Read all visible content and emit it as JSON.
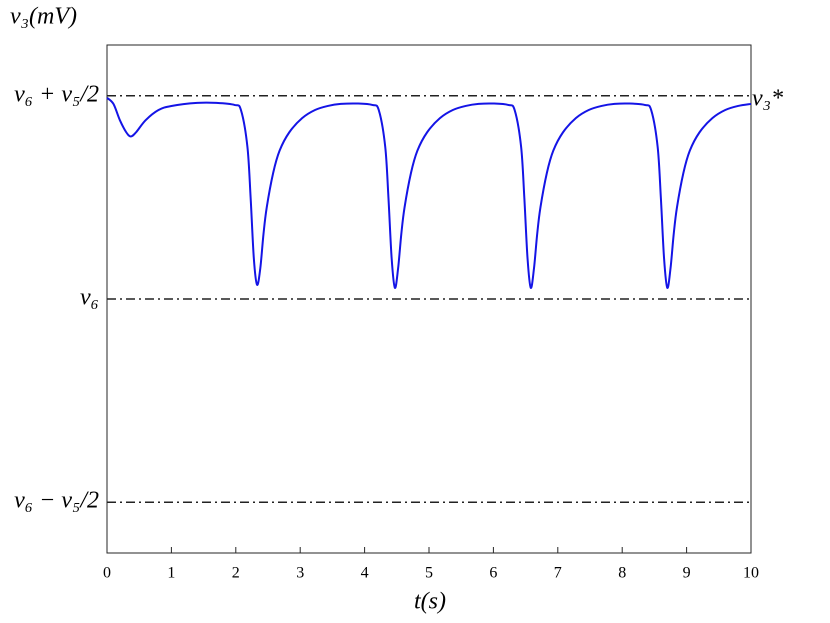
{
  "chart_data": {
    "type": "line",
    "y_label": "v₃(mV)",
    "x_label": "t(s)",
    "annotation": "v₃*",
    "xlim": [
      0,
      10
    ],
    "xticks": [
      0,
      1,
      2,
      3,
      4,
      5,
      6,
      7,
      8,
      9,
      10
    ],
    "ylim": [
      -1.25,
      1.25
    ],
    "yticks": [
      {
        "value": -1,
        "label": "v₆ − v₅/2"
      },
      {
        "value": 0,
        "label": "v₆"
      },
      {
        "value": 1,
        "label": "v₆ + v₅/2"
      }
    ],
    "grid": true,
    "grid_style": "dash-dot",
    "x": [
      0,
      0.1,
      0.2,
      0.3,
      0.37,
      0.45,
      0.6,
      0.8,
      1.0,
      1.4,
      1.7,
      1.98,
      2.08,
      2.18,
      2.23,
      2.28,
      2.33,
      2.38,
      2.43,
      2.48,
      2.58,
      2.68,
      2.83,
      3.03,
      3.23,
      3.43,
      3.63,
      3.9,
      4.12,
      4.22,
      4.32,
      4.37,
      4.42,
      4.47,
      4.52,
      4.57,
      4.62,
      4.72,
      4.82,
      4.97,
      5.17,
      5.37,
      5.57,
      5.77,
      6.0,
      6.23,
      6.33,
      6.43,
      6.48,
      6.53,
      6.58,
      6.63,
      6.68,
      6.73,
      6.83,
      6.93,
      7.08,
      7.28,
      7.48,
      7.68,
      7.88,
      8.1,
      8.35,
      8.45,
      8.55,
      8.6,
      8.65,
      8.7,
      8.75,
      8.8,
      8.85,
      8.95,
      9.05,
      9.2,
      9.4,
      9.6,
      9.8,
      10
    ],
    "series": [
      {
        "color": "#1414e6",
        "values": [
          0.99,
          0.96,
          0.88,
          0.82,
          0.8,
          0.82,
          0.88,
          0.93,
          0.95,
          0.965,
          0.965,
          0.955,
          0.93,
          0.75,
          0.5,
          0.2,
          0.07,
          0.15,
          0.32,
          0.45,
          0.62,
          0.73,
          0.82,
          0.89,
          0.93,
          0.95,
          0.96,
          0.962,
          0.955,
          0.93,
          0.75,
          0.5,
          0.2,
          0.055,
          0.15,
          0.32,
          0.45,
          0.62,
          0.73,
          0.82,
          0.89,
          0.93,
          0.95,
          0.96,
          0.962,
          0.955,
          0.93,
          0.75,
          0.5,
          0.2,
          0.055,
          0.15,
          0.32,
          0.45,
          0.62,
          0.73,
          0.82,
          0.89,
          0.93,
          0.95,
          0.96,
          0.962,
          0.955,
          0.93,
          0.75,
          0.5,
          0.2,
          0.055,
          0.15,
          0.32,
          0.45,
          0.62,
          0.73,
          0.82,
          0.89,
          0.93,
          0.95,
          0.96
        ]
      }
    ]
  }
}
